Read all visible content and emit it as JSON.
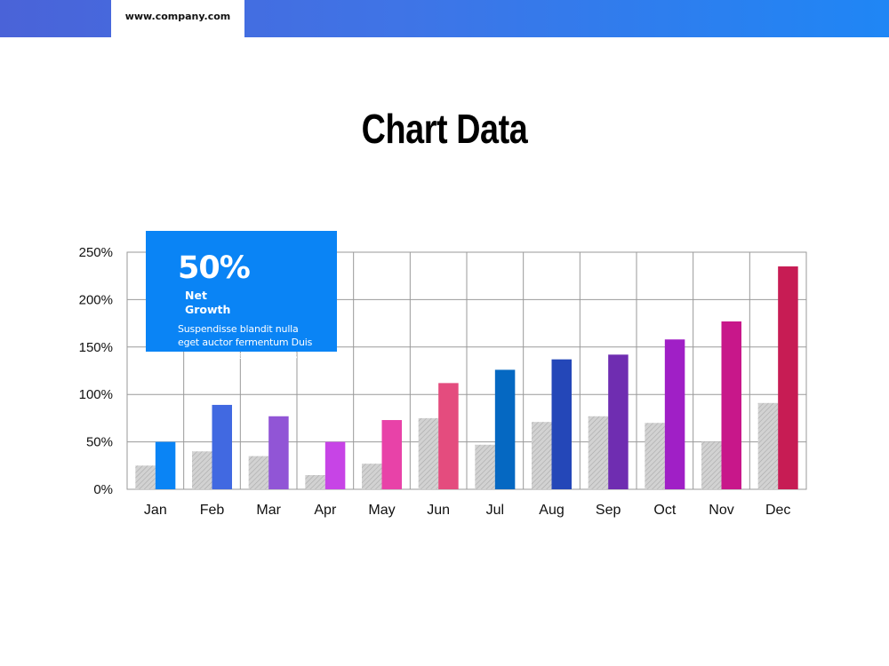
{
  "header": {
    "url": "www.company.com"
  },
  "title": "Chart Data",
  "callout": {
    "value": "50%",
    "label": "Net Growth",
    "description": "Suspendisse blandit nulla eget auctor fermentum Duis ultrices posuere convallis."
  },
  "chart_data": {
    "type": "bar",
    "title": "",
    "xlabel": "",
    "ylabel": "",
    "categories": [
      "Jan",
      "Feb",
      "Mar",
      "Apr",
      "May",
      "Jun",
      "Jul",
      "Aug",
      "Sep",
      "Oct",
      "Nov",
      "Dec"
    ],
    "series": [
      {
        "values": [
          25,
          40,
          35,
          15,
          27,
          75,
          47,
          71,
          77,
          70,
          50,
          91
        ],
        "pattern": "hatched-gray"
      },
      {
        "values": [
          50,
          89,
          77,
          50,
          73,
          112,
          126,
          137,
          142,
          158,
          177,
          235
        ],
        "colors": [
          "#0a84f5",
          "#4169e1",
          "#9155d6",
          "#c744e6",
          "#e842a8",
          "#e44c7e",
          "#0568c2",
          "#2447b8",
          "#6f2db1",
          "#a01fc6",
          "#c8178a",
          "#c71c54"
        ]
      }
    ],
    "ylim": [
      0,
      250
    ],
    "yticks": [
      0,
      50,
      100,
      150,
      200,
      250
    ],
    "ytick_format": "percent",
    "grid": true
  }
}
